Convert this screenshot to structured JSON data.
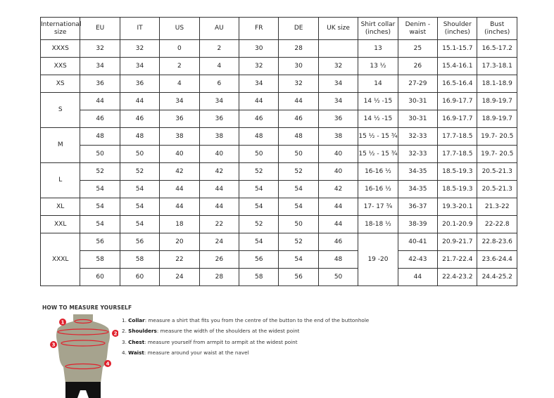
{
  "table": {
    "headers": [
      "International size",
      "EU",
      "IT",
      "US",
      "AU",
      "FR",
      "DE",
      "UK size",
      "Shirt collar (inches)",
      "Denim - waist",
      "Shoulder (inches)",
      "Bust (inches)"
    ],
    "groups": [
      {
        "size": "XXXS",
        "rows": [
          [
            "32",
            "32",
            "0",
            "2",
            "30",
            "28",
            "",
            "13",
            "25",
            "15.1-15.7",
            "16.5-17.2"
          ]
        ]
      },
      {
        "size": "XXS",
        "rows": [
          [
            "34",
            "34",
            "2",
            "4",
            "32",
            "30",
            "32",
            "13 ½",
            "26",
            "15.4-16.1",
            "17.3-18.1"
          ]
        ]
      },
      {
        "size": "XS",
        "rows": [
          [
            "36",
            "36",
            "4",
            "6",
            "34",
            "32",
            "34",
            "14",
            "27-29",
            "16.5-16.4",
            "18.1-18.9"
          ]
        ]
      },
      {
        "size": "S",
        "rows": [
          [
            "44",
            "44",
            "34",
            "34",
            "44",
            "44",
            "34",
            "14 ½ -15",
            "30-31",
            "16.9-17.7",
            "18.9-19.7"
          ],
          [
            "46",
            "46",
            "36",
            "36",
            "46",
            "46",
            "36",
            "14 ½ -15",
            "30-31",
            "16.9-17.7",
            "18.9-19.7"
          ]
        ]
      },
      {
        "size": "M",
        "rows": [
          [
            "48",
            "48",
            "38",
            "38",
            "48",
            "48",
            "38",
            "15 ½ - 15 ¾",
            "32-33",
            "17.7-18.5",
            "19.7- 20.5"
          ],
          [
            "50",
            "50",
            "40",
            "40",
            "50",
            "50",
            "40",
            "15 ½ - 15 ¾",
            "32-33",
            "17.7-18.5",
            "19.7- 20.5"
          ]
        ]
      },
      {
        "size": "L",
        "rows": [
          [
            "52",
            "52",
            "42",
            "42",
            "52",
            "52",
            "40",
            "16-16 ½",
            "34-35",
            "18.5-19.3",
            "20.5-21.3"
          ],
          [
            "54",
            "54",
            "44",
            "44",
            "54",
            "54",
            "42",
            "16-16 ½",
            "34-35",
            "18.5-19.3",
            "20.5-21.3"
          ]
        ]
      },
      {
        "size": "XL",
        "rows": [
          [
            "54",
            "54",
            "44",
            "44",
            "54",
            "54",
            "44",
            "17- 17 ¾",
            "36-37",
            "19.3-20.1",
            "21.3-22"
          ]
        ]
      },
      {
        "size": "XXL",
        "rows": [
          [
            "54",
            "54",
            "18",
            "22",
            "52",
            "50",
            "44",
            "18-18 ½",
            "38-39",
            "20.1-20.9",
            "22-22.8"
          ]
        ]
      },
      {
        "size": "XXXL",
        "collar_merged": "19 -20",
        "rows": [
          [
            "56",
            "56",
            "20",
            "24",
            "54",
            "52",
            "46",
            null,
            "40-41",
            "20.9-21.7",
            "22.8-23.6"
          ],
          [
            "58",
            "58",
            "22",
            "26",
            "56",
            "54",
            "48",
            null,
            "42-43",
            "21.7-22.4",
            "23.6-24.4"
          ],
          [
            "60",
            "60",
            "24",
            "28",
            "58",
            "56",
            "50",
            null,
            "44",
            "22.4-23.2",
            "24.4-25.2"
          ]
        ]
      }
    ]
  },
  "measure": {
    "title": "HOW TO MEASURE YOURSELF",
    "steps": [
      {
        "num": "1.",
        "term": "Collar",
        "text": ": measure a shirt that fits you from the centre of the button to the end of the buttonhole"
      },
      {
        "num": "2.",
        "term": "Shoulders",
        "text": ": measure the width of the shoulders at the widest point"
      },
      {
        "num": "3.",
        "term": "Chest",
        "text": ": measure yourself from armpit to armpit at the widest point"
      },
      {
        "num": "4.",
        "term": "Waist",
        "text": ": measure around your waist at the navel"
      }
    ],
    "markers": [
      "1",
      "2",
      "3",
      "4"
    ],
    "colors": {
      "marker": "#e0202c",
      "torso": "#a6a38e",
      "shorts": "#111111"
    }
  }
}
